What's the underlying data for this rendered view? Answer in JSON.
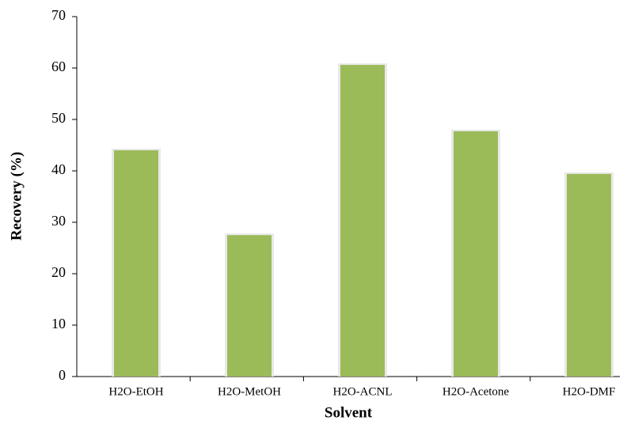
{
  "chart_data": {
    "type": "bar",
    "x_label": "Solvent",
    "y_label": "Recovery (%)",
    "categories": [
      "H2O-EtOH",
      "H2O-MetOH",
      "H2O-ACNL",
      "H2O-Acetone",
      "H2O-DMF"
    ],
    "values": [
      44,
      27.5,
      60.6,
      47.7,
      39.4
    ],
    "color": "#9bbb59",
    "ylim": [
      0,
      70
    ],
    "yticks": [
      0,
      10,
      20,
      30,
      40,
      50,
      60,
      70
    ],
    "grid": false
  }
}
